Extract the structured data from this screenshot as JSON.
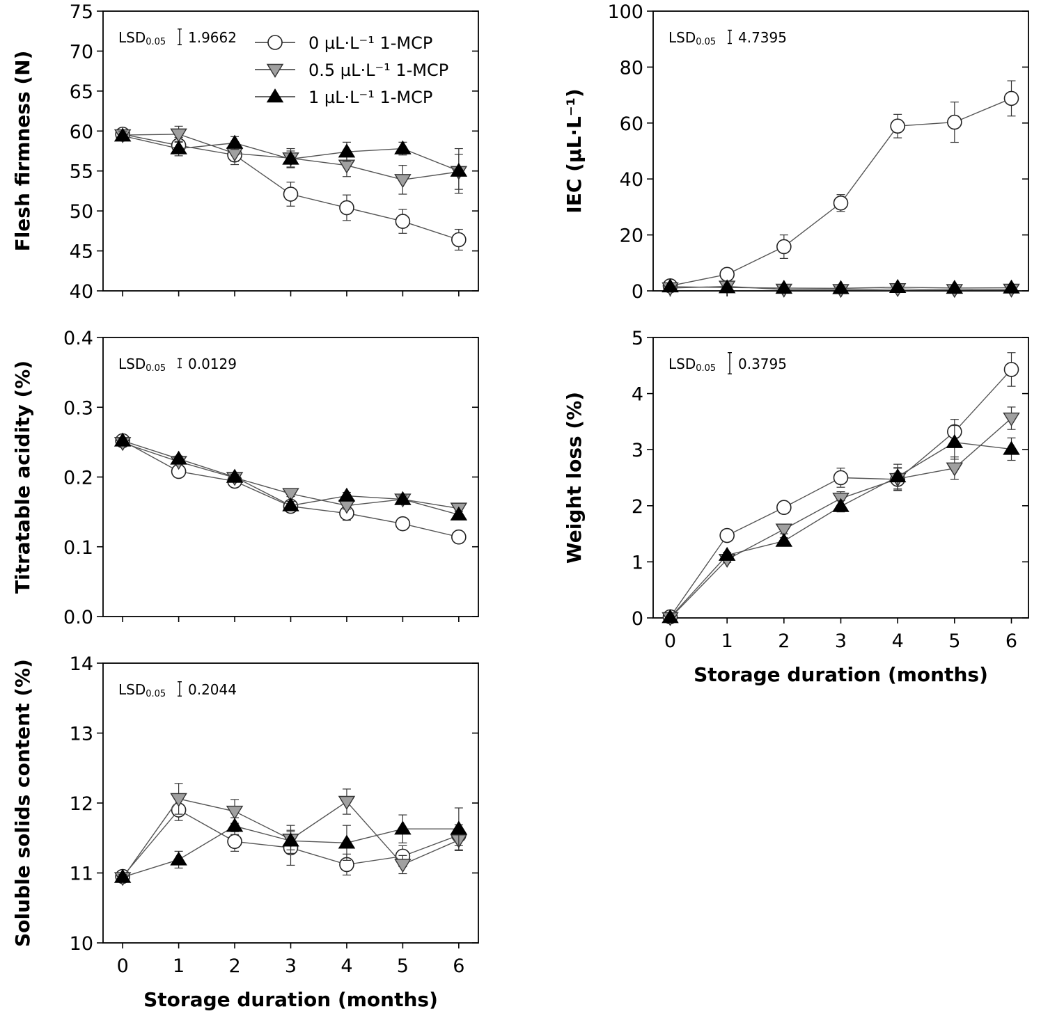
{
  "legend": {
    "entries": [
      {
        "series": "0",
        "label": "0 µL·L⁻¹ 1-MCP"
      },
      {
        "series": "0.5",
        "label": "0.5 µL·L⁻¹ 1-MCP"
      },
      {
        "series": "1",
        "label": "1 µL·L⁻¹ 1-MCP"
      }
    ]
  },
  "chart_data": [
    {
      "id": "firmness",
      "type": "line",
      "title": "",
      "xlabel": "",
      "ylabel": "Flesh firmness (N)",
      "x": [
        0,
        1,
        2,
        3,
        4,
        5,
        6
      ],
      "xticks": [],
      "ylim": [
        40,
        75
      ],
      "yticks": [
        "40",
        "45",
        "50",
        "55",
        "60",
        "65",
        "70",
        "75"
      ],
      "lsd": {
        "label": "LSD",
        "sub": "0.05",
        "value": "1.9662",
        "magnitude": 1.9662
      },
      "series": [
        {
          "name": "0 µL·L⁻¹ 1-MCP",
          "marker": "circle",
          "values": [
            59.6,
            58.2,
            57.0,
            52.1,
            50.4,
            48.7,
            46.4
          ],
          "err": [
            0.6,
            1.0,
            1.2,
            1.5,
            1.6,
            1.5,
            1.3
          ]
        },
        {
          "name": "0.5 µL·L⁻¹ 1-MCP",
          "marker": "triangle-down",
          "values": [
            59.5,
            59.6,
            57.2,
            56.6,
            55.7,
            53.9,
            54.9
          ],
          "err": [
            0.5,
            1.0,
            1.0,
            1.2,
            1.4,
            1.8,
            2.2
          ]
        },
        {
          "name": "1 µL·L⁻¹ 1-MCP",
          "marker": "triangle-up",
          "values": [
            59.4,
            57.8,
            58.5,
            56.5,
            57.4,
            57.8,
            55.0
          ],
          "err": [
            0.5,
            0.9,
            0.8,
            1.0,
            1.2,
            0.8,
            2.8
          ]
        }
      ]
    },
    {
      "id": "iec",
      "type": "line",
      "title": "",
      "xlabel": "",
      "ylabel": "IEC (µL·L⁻¹)",
      "x": [
        0,
        1,
        2,
        3,
        4,
        5,
        6
      ],
      "xticks": [],
      "ylim": [
        0,
        100
      ],
      "yticks": [
        "0",
        "20",
        "40",
        "60",
        "80",
        "100"
      ],
      "lsd": {
        "label": "LSD",
        "sub": "0.05",
        "value": "4.7395",
        "magnitude": 4.7395
      },
      "series": [
        {
          "name": "0 µL·L⁻¹ 1-MCP",
          "marker": "circle",
          "values": [
            1.8,
            5.9,
            15.8,
            31.4,
            58.9,
            60.3,
            68.8
          ],
          "err": [
            0.5,
            1.0,
            4.2,
            3.0,
            4.2,
            7.2,
            6.3
          ]
        },
        {
          "name": "0.5 µL·L⁻¹ 1-MCP",
          "marker": "triangle-down",
          "values": [
            1.0,
            1.6,
            0.5,
            0.4,
            0.7,
            0.4,
            0.5
          ],
          "err": [
            0.3,
            0.4,
            0.3,
            0.3,
            0.3,
            0.3,
            0.3
          ]
        },
        {
          "name": "1 µL·L⁻¹ 1-MCP",
          "marker": "triangle-up",
          "values": [
            1.5,
            1.2,
            1.0,
            0.9,
            1.3,
            1.0,
            1.1
          ],
          "err": [
            0.3,
            0.3,
            0.3,
            0.3,
            0.3,
            0.3,
            0.3
          ]
        }
      ]
    },
    {
      "id": "acidity",
      "type": "line",
      "title": "",
      "xlabel": "",
      "ylabel": "Titratable acidity (%)",
      "x": [
        0,
        1,
        2,
        3,
        4,
        5,
        6
      ],
      "xticks": [],
      "ylim": [
        0,
        0.4
      ],
      "yticks": [
        "0.0",
        "0.1",
        "0.2",
        "0.3",
        "0.4"
      ],
      "lsd": {
        "label": "LSD",
        "sub": "0.05",
        "value": "0.0129",
        "magnitude": 0.0129
      },
      "series": [
        {
          "name": "0 µL·L⁻¹ 1-MCP",
          "marker": "circle",
          "values": [
            0.252,
            0.208,
            0.194,
            0.158,
            0.148,
            0.133,
            0.114
          ],
          "err": [
            0.003,
            0.004,
            0.005,
            0.006,
            0.01,
            0.005,
            0.004
          ]
        },
        {
          "name": "0.5 µL·L⁻¹ 1-MCP",
          "marker": "triangle-down",
          "values": [
            0.249,
            0.222,
            0.199,
            0.176,
            0.159,
            0.168,
            0.155
          ],
          "err": [
            0.003,
            0.004,
            0.004,
            0.004,
            0.005,
            0.005,
            0.004
          ]
        },
        {
          "name": "1 µL·L⁻¹ 1-MCP",
          "marker": "triangle-up",
          "values": [
            0.252,
            0.226,
            0.2,
            0.159,
            0.173,
            0.168,
            0.146
          ],
          "err": [
            0.003,
            0.004,
            0.004,
            0.006,
            0.005,
            0.005,
            0.005
          ]
        }
      ]
    },
    {
      "id": "weightloss",
      "type": "line",
      "title": "",
      "xlabel": "Storage duration (months)",
      "ylabel": "Weight loss (%)",
      "x": [
        0,
        1,
        2,
        3,
        4,
        5,
        6
      ],
      "xticks": [
        "0",
        "1",
        "2",
        "3",
        "4",
        "5",
        "6"
      ],
      "ylim": [
        0,
        5
      ],
      "yticks": [
        "0",
        "1",
        "2",
        "3",
        "4",
        "5"
      ],
      "lsd": {
        "label": "LSD",
        "sub": "0.05",
        "value": "0.3795",
        "magnitude": 0.3795
      },
      "series": [
        {
          "name": "0 µL·L⁻¹ 1-MCP",
          "marker": "circle",
          "values": [
            0.02,
            1.47,
            1.97,
            2.5,
            2.47,
            3.32,
            4.43
          ],
          "err": [
            0.02,
            0.05,
            0.08,
            0.17,
            0.2,
            0.22,
            0.3
          ]
        },
        {
          "name": "0.5 µL·L⁻¹ 1-MCP",
          "marker": "triangle-down",
          "values": [
            0.0,
            1.04,
            1.58,
            2.13,
            2.48,
            2.67,
            3.56
          ],
          "err": [
            0.02,
            0.05,
            0.08,
            0.12,
            0.2,
            0.2,
            0.2
          ]
        },
        {
          "name": "1 µL·L⁻¹ 1-MCP",
          "marker": "triangle-up",
          "values": [
            0.01,
            1.12,
            1.37,
            1.99,
            2.52,
            3.13,
            3.01
          ],
          "err": [
            0.02,
            0.05,
            0.06,
            0.1,
            0.22,
            0.3,
            0.2
          ]
        }
      ]
    },
    {
      "id": "ssc",
      "type": "line",
      "title": "",
      "xlabel": "Storage duration (months)",
      "ylabel": "Soluble solids content (%)",
      "x": [
        0,
        1,
        2,
        3,
        4,
        5,
        6
      ],
      "xticks": [
        "0",
        "1",
        "2",
        "3",
        "4",
        "5",
        "6"
      ],
      "ylim": [
        10,
        14
      ],
      "yticks": [
        "10",
        "11",
        "12",
        "13",
        "14"
      ],
      "lsd": {
        "label": "LSD",
        "sub": "0.05",
        "value": "0.2044",
        "magnitude": 0.2044
      },
      "series": [
        {
          "name": "0 µL·L⁻¹ 1-MCP",
          "marker": "circle",
          "values": [
            10.95,
            11.9,
            11.45,
            11.36,
            11.12,
            11.24,
            11.54
          ],
          "err": [
            0.04,
            0.15,
            0.14,
            0.25,
            0.15,
            0.15,
            0.15
          ]
        },
        {
          "name": "0.5 µL·L⁻¹ 1-MCP",
          "marker": "triangle-down",
          "values": [
            10.93,
            12.06,
            11.88,
            11.48,
            12.02,
            11.12,
            11.47
          ],
          "err": [
            0.04,
            0.22,
            0.17,
            0.2,
            0.18,
            0.13,
            0.15
          ]
        },
        {
          "name": "1 µL·L⁻¹ 1-MCP",
          "marker": "triangle-up",
          "values": [
            10.94,
            11.19,
            11.67,
            11.46,
            11.43,
            11.63,
            11.63
          ],
          "err": [
            0.04,
            0.12,
            0.12,
            0.13,
            0.25,
            0.2,
            0.3
          ]
        }
      ]
    }
  ]
}
